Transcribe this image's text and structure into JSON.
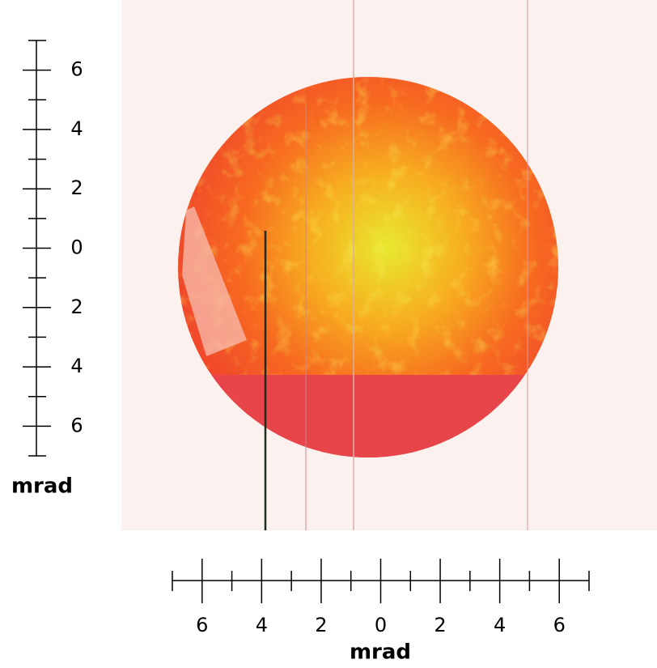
{
  "vertical_scale": {
    "labels": [
      "6",
      "4",
      "2",
      "0",
      "2",
      "4",
      "6"
    ],
    "unit": "mrad"
  },
  "horizontal_scale": {
    "labels": [
      "6",
      "4",
      "2",
      "0",
      "2",
      "4",
      "6"
    ],
    "unit": "mrad"
  }
}
